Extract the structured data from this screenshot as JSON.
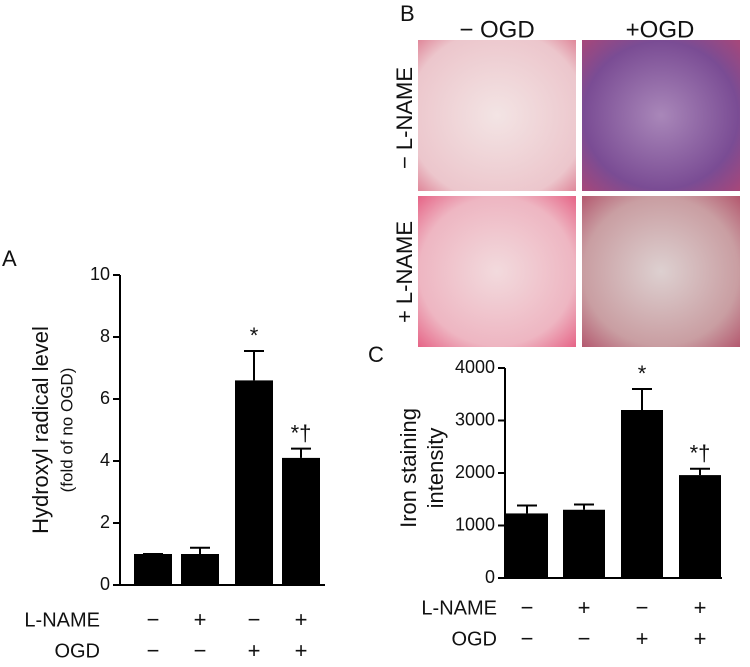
{
  "chart_data": [
    {
      "type": "bar",
      "panel": "A",
      "y_label": "Hydroxyl radical level",
      "y_sublabel": "(fold of no OGD)",
      "values": [
        1,
        1,
        6.6,
        4.1
      ],
      "errors": [
        0,
        0.2,
        0.95,
        0.3
      ],
      "value_annotations": [
        null,
        null,
        "*",
        "*†"
      ],
      "factors": [
        {
          "name": "L-NAME",
          "levels": [
            "−",
            "+",
            "−",
            "+"
          ]
        },
        {
          "name": "OGD",
          "levels": [
            "−",
            "−",
            "+",
            "+"
          ]
        }
      ],
      "color": "#000000",
      "ylim": [
        0,
        10
      ],
      "yticks": [
        0,
        2,
        4,
        6,
        8,
        10
      ]
    },
    {
      "type": "bar",
      "panel": "C",
      "y_label": [
        "Iron staining",
        "intensity"
      ],
      "values": [
        1230,
        1300,
        3200,
        1960
      ],
      "errors": [
        150,
        100,
        400,
        120
      ],
      "value_annotations": [
        null,
        null,
        "*",
        "*†"
      ],
      "factors": [
        {
          "name": "L-NAME",
          "levels": [
            "−",
            "+",
            "−",
            "+"
          ]
        },
        {
          "name": "OGD",
          "levels": [
            "−",
            "−",
            "+",
            "+"
          ]
        }
      ],
      "color": "#000000",
      "ylim": [
        0,
        4000
      ],
      "yticks": [
        0,
        1000,
        2000,
        3000,
        4000
      ]
    }
  ],
  "panel_b": {
    "label": "B",
    "columns": [
      "− OGD",
      "+OGD"
    ],
    "rows": [
      "− L-NAME",
      "+ L-NAME"
    ]
  }
}
